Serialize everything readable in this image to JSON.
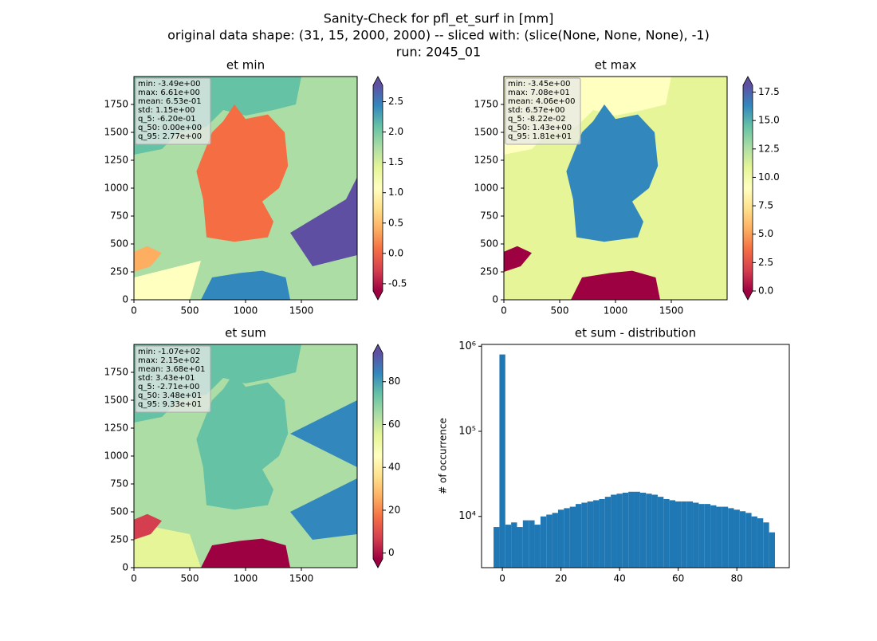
{
  "figure": {
    "title_lines": [
      "Sanity-Check for pfl_et_surf in [mm]",
      "original data shape: (31, 15, 2000, 2000) -- sliced with: (slice(None, None, None), -1)",
      "run: 2045_01"
    ]
  },
  "chart_data": [
    {
      "type": "heatmap",
      "title": "et min",
      "xlim": [
        0,
        2000
      ],
      "ylim": [
        0,
        2000
      ],
      "xticks": [
        0,
        500,
        1000,
        1500
      ],
      "yticks": [
        0,
        250,
        500,
        750,
        1000,
        1250,
        1500,
        1750
      ],
      "stats": [
        "min: -3.49e+00",
        "max: 6.61e+00",
        "mean: 6.53e-01",
        "std: 1.15e+00",
        "q_5: -6.20e-01",
        "q_50: 0.00e+00",
        "q_95: 2.77e+00"
      ],
      "colorbar": {
        "clim": [
          -0.62,
          2.77
        ],
        "ticks": [
          -0.5,
          {
            "value": 0,
            "label": "0.0"
          },
          0.5,
          {
            "value": 1,
            "label": "1.0"
          },
          1.5,
          {
            "value": 2,
            "label": "2.0"
          },
          2.5
        ],
        "colormap": [
          "#9e0142",
          "#d53e4f",
          "#f46d43",
          "#fdae61",
          "#fee08b",
          "#ffffbf",
          "#e6f598",
          "#abdda4",
          "#66c2a5",
          "#3288bd",
          "#5e4fa2"
        ]
      }
    },
    {
      "type": "heatmap",
      "title": "et max",
      "xlim": [
        0,
        2000
      ],
      "ylim": [
        0,
        2000
      ],
      "xticks": [
        0,
        500,
        1000,
        1500
      ],
      "yticks": [
        0,
        250,
        500,
        750,
        1000,
        1250,
        1500,
        1750
      ],
      "stats": [
        "min: -3.45e+00",
        "max: 7.08e+01",
        "mean: 4.06e+00",
        "std: 6.57e+00",
        "q_5: -8.22e-02",
        "q_50: 1.43e+00",
        "q_95: 1.81e+01"
      ],
      "colorbar": {
        "clim": [
          0,
          18.1
        ],
        "ticks": [
          {
            "value": 0,
            "label": "0.0"
          },
          2.5,
          {
            "value": 5,
            "label": "5.0"
          },
          7.5,
          {
            "value": 10,
            "label": "10.0"
          },
          12.5,
          {
            "value": 15,
            "label": "15.0"
          },
          17.5
        ],
        "colormap": [
          "#9e0142",
          "#d53e4f",
          "#f46d43",
          "#fdae61",
          "#fee08b",
          "#ffffbf",
          "#e6f598",
          "#abdda4",
          "#66c2a5",
          "#3288bd",
          "#5e4fa2"
        ]
      }
    },
    {
      "type": "heatmap",
      "title": "et sum",
      "xlim": [
        0,
        2000
      ],
      "ylim": [
        0,
        2000
      ],
      "xticks": [
        0,
        500,
        1000,
        1500
      ],
      "yticks": [
        0,
        250,
        500,
        750,
        1000,
        1250,
        1500,
        1750
      ],
      "stats": [
        "min: -1.07e+02",
        "max: 2.15e+02",
        "mean: 3.68e+01",
        "std: 3.43e+01",
        "q_5: -2.71e+00",
        "q_50: 3.48e+01",
        "q_95: 9.33e+01"
      ],
      "colorbar": {
        "clim": [
          -2.71,
          93.3
        ],
        "ticks": [
          0,
          20,
          40,
          60,
          80
        ],
        "colormap": [
          "#9e0142",
          "#d53e4f",
          "#f46d43",
          "#fdae61",
          "#fee08b",
          "#ffffbf",
          "#e6f598",
          "#abdda4",
          "#66c2a5",
          "#3288bd",
          "#5e4fa2"
        ]
      }
    },
    {
      "type": "histogram",
      "title": "et sum - distribution",
      "ylabel": "# of occurrence",
      "color": "#1f77b4",
      "log_y": true,
      "bins": [
        -3,
        -1,
        1,
        3,
        5,
        7,
        9,
        11,
        13,
        15,
        17,
        19,
        21,
        23,
        25,
        27,
        29,
        31,
        33,
        35,
        37,
        39,
        41,
        43,
        45,
        47,
        49,
        51,
        53,
        55,
        57,
        59,
        61,
        63,
        65,
        67,
        69,
        71,
        73,
        75,
        77,
        79,
        81,
        83,
        85,
        87,
        89,
        91,
        93
      ],
      "values": [
        7500,
        800000,
        8000,
        8500,
        7500,
        9000,
        9000,
        8000,
        10000,
        10500,
        11000,
        12000,
        12500,
        13000,
        14000,
        14500,
        15000,
        15500,
        16000,
        17000,
        18000,
        18500,
        19000,
        19500,
        19500,
        19000,
        18500,
        18000,
        17000,
        16000,
        15500,
        15000,
        15000,
        15000,
        14500,
        14000,
        14000,
        13500,
        13000,
        13000,
        12500,
        12000,
        11500,
        11000,
        10000,
        9500,
        8500,
        6500
      ],
      "xlim": [
        -7.1,
        97.9
      ],
      "ylim": [
        2500,
        1050000
      ],
      "xticks": [
        0,
        20,
        40,
        60,
        80
      ],
      "yticks": [
        {
          "value": 10000,
          "label": "10⁴"
        },
        {
          "value": 100000,
          "label": "10⁵"
        },
        {
          "value": 1000000,
          "label": "10⁶"
        }
      ]
    }
  ]
}
